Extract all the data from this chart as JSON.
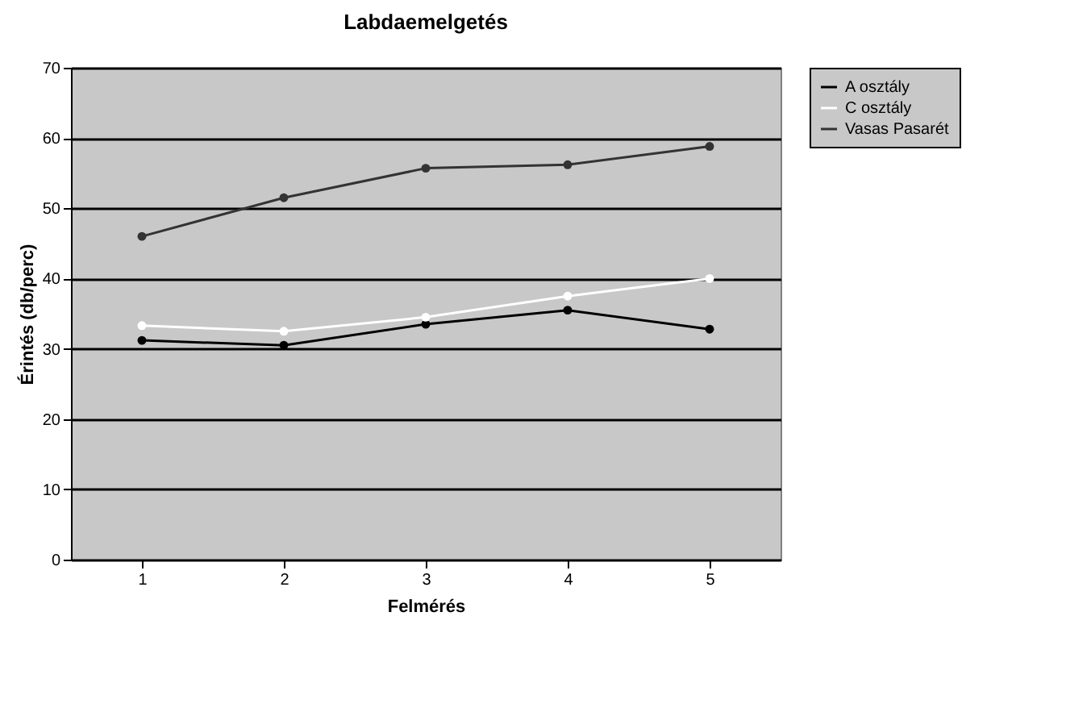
{
  "chart_data": {
    "type": "line",
    "title": "Labdaemelgetés",
    "xlabel": "Felmérés",
    "ylabel": "Érintés (db/perc)",
    "categories": [
      "1",
      "2",
      "3",
      "4",
      "5"
    ],
    "series": [
      {
        "name": "A osztály",
        "color": "#000000",
        "values": [
          31.2,
          30.5,
          33.5,
          35.5,
          32.8
        ]
      },
      {
        "name": "C osztály",
        "color": "#ffffff",
        "values": [
          33.3,
          32.5,
          34.5,
          37.5,
          40
        ]
      },
      {
        "name": "Vasas Pasarét",
        "color": "#333333",
        "values": [
          46,
          51.5,
          55.7,
          56.2,
          58.8
        ]
      }
    ],
    "ylim": [
      0,
      70
    ],
    "yticks": [
      0,
      10,
      20,
      30,
      40,
      50,
      60,
      70
    ],
    "grid": "y",
    "legend": "right",
    "marker": "circle",
    "line_style": "solid"
  }
}
